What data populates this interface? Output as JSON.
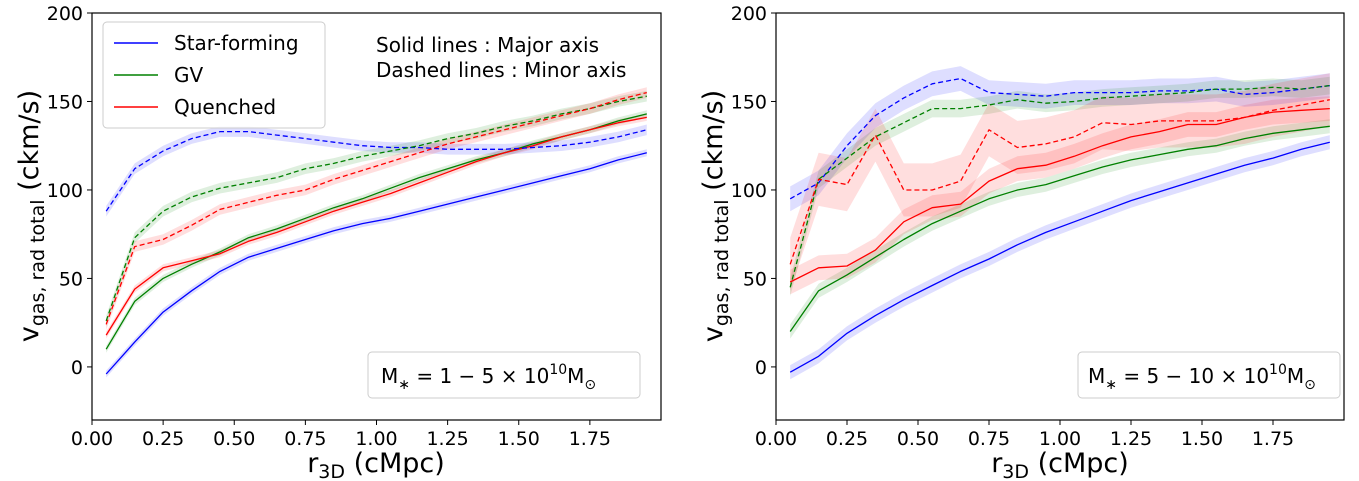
{
  "chart_data": [
    {
      "type": "line",
      "xlabel": "r_3D (cMpc)",
      "ylabel": "v_gas, rad total (ckm/s)",
      "xlim": [
        0.0,
        2.0
      ],
      "ylim": [
        -30,
        200
      ],
      "xticks": [
        "0.00",
        "0.25",
        "0.50",
        "0.75",
        "1.00",
        "1.25",
        "1.50",
        "1.75"
      ],
      "yticks": [
        "0",
        "50",
        "100",
        "150",
        "200"
      ],
      "grid": false,
      "legend": {
        "placement": "upper-left",
        "entries": [
          "Star-forming",
          "GV",
          "Quenched"
        ]
      },
      "annotation": [
        "Solid lines : Major axis",
        "Dashed lines : Minor axis"
      ],
      "mass_label": "M* = 1 − 5 × 10^10 M⊙",
      "x": [
        0.05,
        0.15,
        0.25,
        0.35,
        0.45,
        0.55,
        0.65,
        0.75,
        0.85,
        0.95,
        1.05,
        1.15,
        1.25,
        1.35,
        1.45,
        1.55,
        1.65,
        1.75,
        1.85,
        1.95
      ],
      "series": [
        {
          "name": "Star-forming",
          "axis": "major",
          "color": "#0000ff",
          "dash": false,
          "err": 2,
          "values": [
            -4,
            14,
            31,
            43,
            54,
            62,
            67,
            72,
            77,
            81,
            84,
            88,
            92,
            96,
            100,
            104,
            108,
            112,
            117,
            121
          ]
        },
        {
          "name": "GV",
          "axis": "major",
          "color": "#008000",
          "dash": false,
          "err": 2,
          "values": [
            10,
            37,
            50,
            58,
            65,
            73,
            78,
            84,
            90,
            95,
            101,
            107,
            112,
            117,
            121,
            126,
            130,
            134,
            139,
            143
          ]
        },
        {
          "name": "Quenched",
          "axis": "major",
          "color": "#ff0000",
          "dash": false,
          "err": 2,
          "values": [
            18,
            44,
            56,
            60,
            64,
            71,
            76,
            82,
            88,
            93,
            98,
            104,
            110,
            116,
            121,
            125,
            130,
            134,
            138,
            141
          ]
        },
        {
          "name": "Star-forming",
          "axis": "minor",
          "color": "#0000ff",
          "dash": true,
          "err": 3,
          "values": [
            88,
            112,
            122,
            129,
            133,
            133,
            131,
            129,
            127,
            125,
            124,
            124,
            123,
            123,
            123,
            124,
            125,
            127,
            130,
            134
          ]
        },
        {
          "name": "GV",
          "axis": "minor",
          "color": "#008000",
          "dash": true,
          "err": 3,
          "values": [
            26,
            73,
            88,
            96,
            101,
            104,
            107,
            112,
            115,
            119,
            122,
            125,
            129,
            132,
            136,
            139,
            143,
            146,
            150,
            153
          ]
        },
        {
          "name": "Quenched",
          "axis": "minor",
          "color": "#ff0000",
          "dash": true,
          "err": 3,
          "values": [
            24,
            68,
            72,
            80,
            89,
            93,
            97,
            100,
            106,
            111,
            116,
            121,
            126,
            130,
            134,
            138,
            142,
            146,
            151,
            155
          ]
        }
      ]
    },
    {
      "type": "line",
      "xlabel": "r_3D (cMpc)",
      "ylabel": "v_gas, rad total (ckm/s)",
      "xlim": [
        0.0,
        2.0
      ],
      "ylim": [
        -30,
        200
      ],
      "xticks": [
        "0.00",
        "0.25",
        "0.50",
        "0.75",
        "1.00",
        "1.25",
        "1.50",
        "1.75"
      ],
      "yticks": [
        "0",
        "50",
        "100",
        "150",
        "200"
      ],
      "grid": false,
      "mass_label": "M* = 5 − 10 × 10^10 M⊙",
      "x": [
        0.05,
        0.15,
        0.25,
        0.35,
        0.45,
        0.55,
        0.65,
        0.75,
        0.85,
        0.95,
        1.05,
        1.15,
        1.25,
        1.35,
        1.45,
        1.55,
        1.65,
        1.75,
        1.85,
        1.95
      ],
      "series": [
        {
          "name": "Star-forming",
          "axis": "major",
          "color": "#0000ff",
          "dash": false,
          "err": 4,
          "values": [
            -3,
            6,
            19,
            29,
            38,
            46,
            54,
            61,
            69,
            76,
            82,
            88,
            94,
            99,
            104,
            109,
            114,
            118,
            123,
            127
          ]
        },
        {
          "name": "GV",
          "axis": "major",
          "color": "#008000",
          "dash": false,
          "err": 4,
          "values": [
            20,
            43,
            52,
            62,
            72,
            81,
            88,
            95,
            100,
            103,
            108,
            113,
            117,
            120,
            123,
            125,
            129,
            132,
            134,
            136
          ]
        },
        {
          "name": "Quenched",
          "axis": "major",
          "color": "#ff0000",
          "dash": false,
          "err": 7,
          "values": [
            48,
            56,
            57,
            66,
            82,
            90,
            92,
            105,
            112,
            114,
            119,
            125,
            130,
            133,
            137,
            137,
            141,
            144,
            145,
            146
          ]
        },
        {
          "name": "Star-forming",
          "axis": "minor",
          "color": "#0000ff",
          "dash": true,
          "err": 7,
          "values": [
            95,
            104,
            125,
            142,
            152,
            160,
            163,
            155,
            154,
            153,
            155,
            155,
            155,
            156,
            156,
            157,
            154,
            155,
            157,
            159
          ]
        },
        {
          "name": "GV",
          "axis": "minor",
          "color": "#008000",
          "dash": true,
          "err": 5,
          "values": [
            45,
            106,
            118,
            130,
            138,
            146,
            146,
            148,
            151,
            149,
            150,
            152,
            153,
            154,
            155,
            157,
            157,
            158,
            157,
            159
          ]
        },
        {
          "name": "Quenched",
          "axis": "minor",
          "color": "#ff0000",
          "dash": true,
          "err": 15,
          "values": [
            58,
            106,
            103,
            131,
            100,
            100,
            105,
            134,
            124,
            126,
            130,
            138,
            137,
            139,
            139,
            139,
            141,
            145,
            148,
            151
          ]
        }
      ]
    }
  ]
}
